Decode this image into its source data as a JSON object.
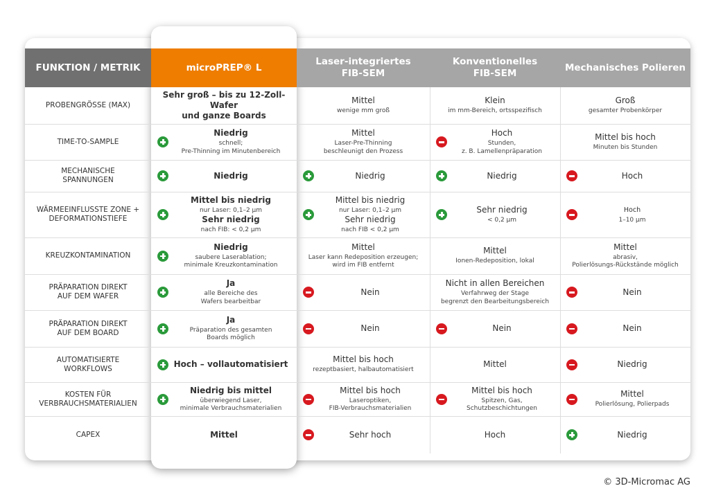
{
  "colors": {
    "header_dark": "#707070",
    "header_gray": "#a6a6a6",
    "accent_orange": "#ee7d00",
    "plus": "#2a9a3a",
    "minus": "#d7191f"
  },
  "headers": [
    "FUNKTION / METRIK",
    "microPREP® L",
    "Laser-integriertes\nFIB-SEM",
    "Konventionelles\nFIB-SEM",
    "Mechanisches Polieren"
  ],
  "rows": [
    {
      "label": "PROBENGRÖSSE (MAX)",
      "cells": [
        {
          "main": "Sehr groß – bis zu 12-Zoll-Wafer\nund ganze Boards"
        },
        {
          "main": "Mittel",
          "sub": "wenige mm groß"
        },
        {
          "main": "Klein",
          "sub": "im mm-Bereich, ortsspezifisch"
        },
        {
          "main": "Groß",
          "sub": "gesamter Probenkörper"
        }
      ]
    },
    {
      "label": "TIME-TO-SAMPLE",
      "cells": [
        {
          "icon": "plus",
          "main": "Niedrig",
          "sub": "schnell;\nPre-Thinning im Minutenbereich"
        },
        {
          "main": "Mittel",
          "sub": "Laser-Pre-Thinning\nbeschleunigt den Prozess"
        },
        {
          "icon": "minus",
          "main": "Hoch",
          "sub": "Stunden,\nz. B. Lamellenpräparation"
        },
        {
          "main": "Mittel bis hoch",
          "sub": "Minuten bis Stunden"
        }
      ]
    },
    {
      "label": "MECHANISCHE\nSPANNUNGEN",
      "cells": [
        {
          "icon": "plus",
          "main": "Niedrig"
        },
        {
          "icon": "plus",
          "main": "Niedrig"
        },
        {
          "icon": "plus",
          "main": "Niedrig"
        },
        {
          "icon": "minus",
          "main": "Hoch"
        }
      ]
    },
    {
      "label": "WÄRMEEINFLUSSTE ZONE +\nDEFORMATIONSTIEFE",
      "cells": [
        {
          "icon": "plus",
          "main": "Mittel bis niedrig",
          "sub": "nur Laser: 0,1–2 µm",
          "main2": "Sehr niedrig",
          "sub2": "nach FIB: < 0,2 µm"
        },
        {
          "icon": "plus",
          "main": "Mittel bis niedrig",
          "sub": "nur Laser: 0,1–2 µm",
          "main2": "Sehr niedrig",
          "sub2": "nach FIB < 0,2 µm"
        },
        {
          "icon": "plus",
          "main": "Sehr niedrig",
          "sub": "< 0,2 µm"
        },
        {
          "icon": "minus",
          "main": "Hoch",
          "sub": "1–10 µm",
          "small": true
        }
      ]
    },
    {
      "label": "KREUZKONTAMINATION",
      "cells": [
        {
          "icon": "plus",
          "main": "Niedrig",
          "sub": "saubere Laserablation;\nminimale Kreuzkontamination"
        },
        {
          "main": "Mittel",
          "sub": "Laser kann Redeposition erzeugen;\nwird im FIB entfernt"
        },
        {
          "main": "Mittel",
          "sub": "Ionen-Redeposition, lokal"
        },
        {
          "main": "Mittel",
          "sub": "abrasiv,\nPolierlösungs-Rückstände möglich"
        }
      ]
    },
    {
      "label": "PRÄPARATION DIREKT\nAUF DEM WAFER",
      "cells": [
        {
          "icon": "plus",
          "main": "Ja",
          "sub": "alle Bereiche des\nWafers bearbeitbar"
        },
        {
          "icon": "minus",
          "main": "Nein"
        },
        {
          "main": "Nicht in allen Bereichen",
          "sub": "Verfahrweg der Stage\nbegrenzt den Bearbeitungsbereich"
        },
        {
          "icon": "minus",
          "main": "Nein"
        }
      ]
    },
    {
      "label": "PRÄPARATION DIREKT\nAUF DEM BOARD",
      "cells": [
        {
          "icon": "plus",
          "main": "Ja",
          "sub": "Präparation des gesamten\nBoards möglich"
        },
        {
          "icon": "minus",
          "main": "Nein"
        },
        {
          "icon": "minus",
          "main": "Nein"
        },
        {
          "icon": "minus",
          "main": "Nein"
        }
      ]
    },
    {
      "label": "AUTOMATISIERTE\nWORKFLOWS",
      "cells": [
        {
          "icon": "plus",
          "main": "Hoch – vollautomatisiert"
        },
        {
          "main": "Mittel bis hoch",
          "sub": "rezeptbasiert, halbautomatisiert"
        },
        {
          "main": "Mittel"
        },
        {
          "icon": "minus",
          "main": "Niedrig"
        }
      ]
    },
    {
      "label": "KOSTEN FÜR\nVERBRAUCHSMATERIALIEN",
      "cells": [
        {
          "icon": "plus",
          "main": "Niedrig bis mittel",
          "sub": "überwiegend Laser,\nminimale Verbrauchsmaterialien"
        },
        {
          "icon": "minus",
          "main": "Mittel bis hoch",
          "sub": "Laseroptiken,\nFIB-Verbrauchsmaterialien"
        },
        {
          "icon": "minus",
          "main": "Mittel bis hoch",
          "sub": "Spitzen, Gas, Schutzbeschichtungen"
        },
        {
          "icon": "minus",
          "main": "Mittel",
          "sub": "Polierlösung, Polierpads"
        }
      ]
    },
    {
      "label": "CAPEX",
      "cells": [
        {
          "main": "Mittel"
        },
        {
          "icon": "minus",
          "main": "Sehr hoch"
        },
        {
          "main": "Hoch"
        },
        {
          "icon": "plus",
          "main": "Niedrig"
        }
      ]
    }
  ],
  "copyright": "© 3D-Micromac AG"
}
